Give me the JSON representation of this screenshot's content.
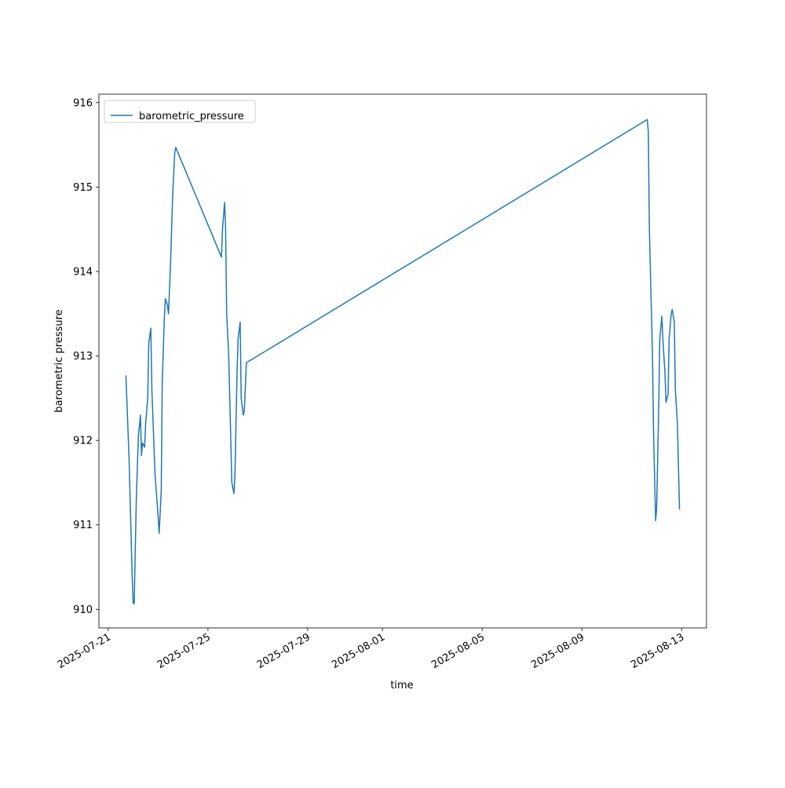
{
  "chart_data": {
    "type": "line",
    "x_label": "time",
    "y_label": "barometric pressure",
    "x": [
      "2025-07-21T17:00",
      "2025-07-21T20:00",
      "2025-07-21T23:00",
      "2025-07-22T00:00",
      "2025-07-22T01:00",
      "2025-07-22T02:00",
      "2025-07-22T03:00",
      "2025-07-22T05:00",
      "2025-07-22T07:00",
      "2025-07-22T08:00",
      "2025-07-22T09:00",
      "2025-07-22T11:00",
      "2025-07-22T12:00",
      "2025-07-22T14:00",
      "2025-07-22T15:00",
      "2025-07-22T17:00",
      "2025-07-22T18:00",
      "2025-07-22T21:00",
      "2025-07-23T00:00",
      "2025-07-23T01:00",
      "2025-07-23T03:00",
      "2025-07-23T04:00",
      "2025-07-23T06:00",
      "2025-07-23T07:00",
      "2025-07-23T09:00",
      "2025-07-23T10:00",
      "2025-07-23T12:00",
      "2025-07-23T13:00",
      "2025-07-23T14:00",
      "2025-07-23T16:00",
      "2025-07-23T17:00",
      "2025-07-25T13:00",
      "2025-07-25T14:00",
      "2025-07-25T16:00",
      "2025-07-25T17:00",
      "2025-07-25T18:00",
      "2025-07-25T20:00",
      "2025-07-25T22:00",
      "2025-07-25T23:00",
      "2025-07-26T01:00",
      "2025-07-26T02:00",
      "2025-07-26T04:00",
      "2025-07-26T05:00",
      "2025-07-26T07:00",
      "2025-07-26T08:00",
      "2025-07-26T10:00",
      "2025-07-26T11:00",
      "2025-07-26T13:00",
      "2025-08-11T15:00",
      "2025-08-11T16:00",
      "2025-08-11T17:00",
      "2025-08-11T20:00",
      "2025-08-11T21:00",
      "2025-08-11T23:00",
      "2025-08-12T00:00",
      "2025-08-12T02:00",
      "2025-08-12T03:00",
      "2025-08-12T05:00",
      "2025-08-12T06:00",
      "2025-08-12T08:00",
      "2025-08-12T09:00",
      "2025-08-12T11:00",
      "2025-08-12T12:00",
      "2025-08-12T14:00",
      "2025-08-12T15:00",
      "2025-08-12T17:00",
      "2025-08-12T18:00",
      "2025-08-12T20:00",
      "2025-08-12T22:00"
    ],
    "series": [
      {
        "name": "barometric_pressure",
        "color": "#1f77b4",
        "values": [
          912.77,
          911.8,
          910.4,
          910.07,
          910.07,
          910.7,
          911.3,
          912.05,
          912.3,
          911.82,
          911.97,
          911.92,
          912.2,
          912.5,
          913.15,
          913.33,
          912.6,
          911.6,
          911.1,
          910.9,
          911.4,
          912.7,
          913.45,
          913.68,
          913.6,
          913.5,
          914.1,
          914.5,
          914.9,
          915.4,
          915.47,
          914.17,
          914.5,
          914.82,
          914.5,
          913.5,
          913.0,
          912.0,
          911.5,
          911.37,
          911.6,
          912.8,
          913.2,
          913.4,
          912.5,
          912.3,
          912.35,
          912.92,
          915.8,
          915.65,
          914.5,
          913.0,
          912.1,
          911.05,
          911.2,
          912.4,
          913.2,
          913.47,
          913.2,
          912.8,
          912.45,
          912.55,
          913.2,
          913.5,
          913.55,
          913.4,
          912.6,
          912.2,
          911.18
        ]
      }
    ],
    "xlim": [
      "2025-07-20T15:00",
      "2025-08-14T00:00"
    ],
    "xticks": [
      "2025-07-21",
      "2025-07-25",
      "2025-07-29",
      "2025-08-01",
      "2025-08-05",
      "2025-08-09",
      "2025-08-13"
    ],
    "ylim": [
      909.78,
      916.1
    ],
    "yticks": [
      910,
      911,
      912,
      913,
      914,
      915,
      916
    ],
    "legend": "upper left"
  }
}
